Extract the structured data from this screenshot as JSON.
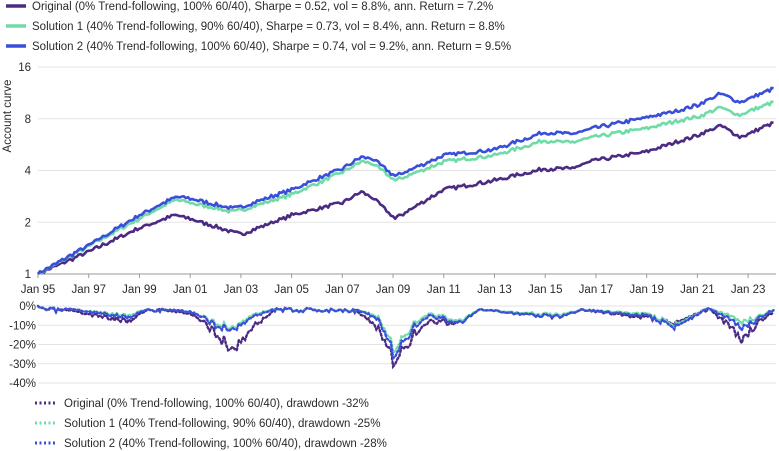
{
  "colors": {
    "original": "#4b2a82",
    "solution1": "#6fdca8",
    "solution2": "#3a4fd9",
    "grid": "#e3e3e3",
    "axis": "#9a9a9a"
  },
  "chart_data": [
    {
      "type": "line",
      "ylabel": "Account curve",
      "yscale": "log2",
      "ylim": [
        1,
        16
      ],
      "y_ticks": [
        "1",
        "2",
        "4",
        "8",
        "16"
      ],
      "x_ticks": [
        "Jan 95",
        "Jan 97",
        "Jan 99",
        "Jan 01",
        "Jan 03",
        "Jan 05",
        "Jan 07",
        "Jan 09",
        "Jan 11",
        "Jan 13",
        "Jan 15",
        "Jan 17",
        "Jan 19",
        "Jan 21",
        "Jan 23"
      ],
      "legend_position": "top-left",
      "x": [
        "1995-01",
        "1997-01",
        "1999-01",
        "2000-06",
        "2001-01",
        "2002-09",
        "2003-01",
        "2005-01",
        "2007-01",
        "2007-10",
        "2008-03",
        "2009-02",
        "2011-01",
        "2013-01",
        "2015-01",
        "2016-01",
        "2017-01",
        "2018-12",
        "2019-12",
        "2021-01",
        "2021-12",
        "2022-09",
        "2023-01",
        "2024-01"
      ],
      "series": [
        {
          "name": "Original (0% Trend-following, 100% 60/40), Sharpe = 0.52, vol = 8.8%, ann. Return = 7.2%",
          "values": [
            1.0,
            1.35,
            1.85,
            2.2,
            2.1,
            1.75,
            1.7,
            2.2,
            2.6,
            3.0,
            2.8,
            2.1,
            3.1,
            3.5,
            4.1,
            4.1,
            4.6,
            5.1,
            5.7,
            6.4,
            7.3,
            6.3,
            6.5,
            7.6
          ]
        },
        {
          "name": "Solution 1 (40% Trend-following, 90% 60/40), Sharpe = 0.73, vol = 8.4%, ann. Return = 8.8%",
          "values": [
            1.0,
            1.45,
            2.1,
            2.7,
            2.6,
            2.3,
            2.35,
            2.9,
            3.9,
            4.5,
            4.4,
            3.5,
            4.5,
            4.9,
            6.0,
            5.8,
            6.3,
            7.0,
            7.6,
            8.2,
            9.3,
            8.4,
            8.8,
            10.0
          ]
        },
        {
          "name": "Solution 2 (40% Trend-following, 100% 60/40), Sharpe = 0.74, vol = 9.2%, ann. Return = 9.5%",
          "values": [
            1.0,
            1.47,
            2.2,
            2.8,
            2.75,
            2.4,
            2.45,
            3.1,
            4.1,
            4.8,
            4.7,
            3.7,
            4.9,
            5.3,
            6.7,
            6.5,
            7.1,
            8.1,
            8.7,
            9.6,
            11.2,
            10.0,
            10.4,
            12.0
          ]
        }
      ]
    },
    {
      "type": "line",
      "ylim": [
        -40,
        0
      ],
      "y_ticks": [
        "0%",
        "-10%",
        "-20%",
        "-30%",
        "-40%"
      ],
      "legend_position": "bottom-left",
      "x": [
        "1995-01",
        "1996-06",
        "1998-08",
        "1999-06",
        "2001-01",
        "2002-01",
        "2002-09",
        "2003-06",
        "2004-06",
        "2007-06",
        "2008-06",
        "2009-02",
        "2009-10",
        "2010-06",
        "2011-09",
        "2012-06",
        "2015-08",
        "2016-06",
        "2018-12",
        "2020-03",
        "2021-06",
        "2022-10",
        "2023-06",
        "2024-01"
      ],
      "series": [
        {
          "name": "Original (0% Trend-following, 100% 60/40), drawdown -32%",
          "values": [
            0,
            -3,
            -8,
            -1,
            -4,
            -14,
            -24,
            -12,
            -1,
            -1,
            -12,
            -32,
            -16,
            -8,
            -9,
            -2,
            -6,
            -2,
            -6,
            -9,
            -1,
            -17,
            -9,
            -3
          ]
        },
        {
          "name": "Solution 1 (40% Trend-following, 90% 60/40), drawdown -25%",
          "values": [
            0,
            -2,
            -5,
            -1,
            -3,
            -9,
            -12,
            -5,
            -1,
            -1,
            -6,
            -25,
            -10,
            -4,
            -8,
            -2,
            -5,
            -2,
            -4,
            -10,
            -1,
            -8,
            -6,
            -2
          ]
        },
        {
          "name": "Solution 2 (40% Trend-following, 100% 60/40), drawdown -28%",
          "values": [
            0,
            -2,
            -6,
            -1,
            -3,
            -10,
            -13,
            -6,
            -1,
            -1,
            -7,
            -28,
            -12,
            -5,
            -9,
            -2,
            -6,
            -2,
            -5,
            -11,
            -1,
            -11,
            -7,
            -2
          ]
        }
      ]
    }
  ]
}
